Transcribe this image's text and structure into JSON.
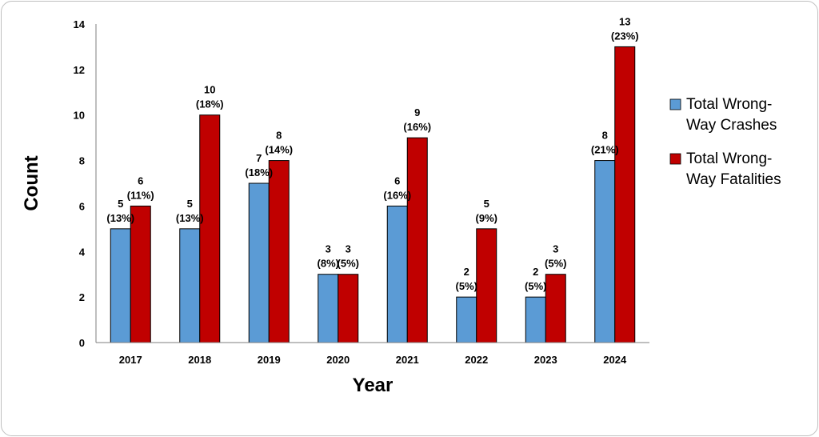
{
  "chart_data": {
    "type": "bar",
    "categories": [
      "2017",
      "2018",
      "2019",
      "2020",
      "2021",
      "2022",
      "2023",
      "2024"
    ],
    "series": [
      {
        "name": "Total Wrong-Way Crashes",
        "values": [
          5,
          5,
          7,
          3,
          6,
          2,
          2,
          8
        ],
        "labels": [
          [
            "5",
            "(13%)"
          ],
          [
            "5",
            "(13%)"
          ],
          [
            "7",
            "(18%)"
          ],
          [
            "3",
            "(8%)"
          ],
          [
            "6",
            "(16%)"
          ],
          [
            "2",
            "(5%)"
          ],
          [
            "2",
            "(5%)"
          ],
          [
            "8",
            "(21%)"
          ]
        ],
        "legend_lines": [
          "Total Wrong-",
          "Way Crashes"
        ],
        "color": "#5b9bd5"
      },
      {
        "name": "Total Wrong-Way Fatalities",
        "values": [
          6,
          10,
          8,
          3,
          9,
          5,
          3,
          13
        ],
        "labels": [
          [
            "6",
            "(11%)"
          ],
          [
            "10",
            "(18%)"
          ],
          [
            "8",
            "(14%)"
          ],
          [
            "3",
            "(5%)"
          ],
          [
            "9",
            "(16%)"
          ],
          [
            "5",
            "(9%)"
          ],
          [
            "3",
            "(5%)"
          ],
          [
            "13",
            "(23%)"
          ]
        ],
        "legend_lines": [
          "Total Wrong-",
          "Way Fatalities"
        ],
        "color": "#c00000"
      }
    ],
    "xlabel": "Year",
    "ylabel": "Count",
    "ylim": [
      0,
      14
    ],
    "yticks": [
      0,
      2,
      4,
      6,
      8,
      10,
      12,
      14
    ],
    "grid": false,
    "legend_position": "right"
  }
}
